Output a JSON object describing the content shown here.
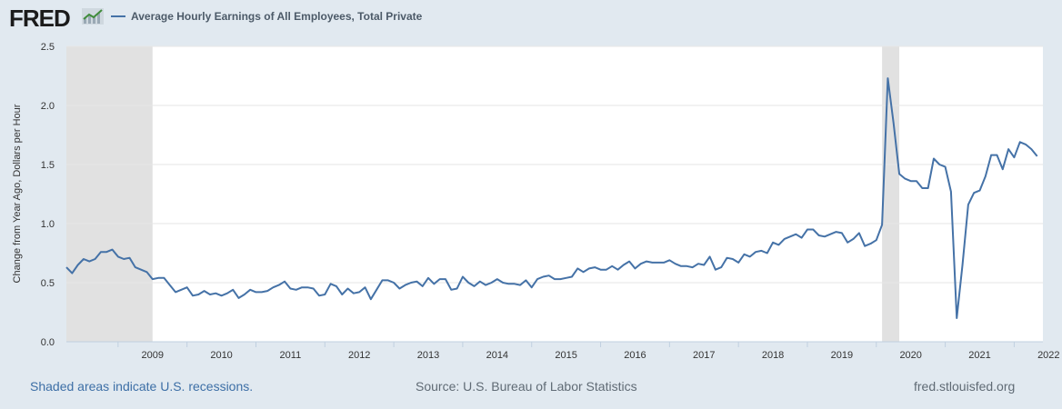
{
  "header": {
    "logo_text": "FRED",
    "logo_icon": "trend-line-icon"
  },
  "colors": {
    "series": "#4572a7",
    "recession": "#e1e1e1",
    "background": "#e1e9f0",
    "plot": "#ffffff"
  },
  "footer": {
    "recession_note": "Shaded areas indicate U.S. recessions.",
    "source": "Source: U.S. Bureau of Labor Statistics",
    "site": "fred.stlouisfed.org"
  },
  "chart_data": {
    "type": "line",
    "legend_position": "top-left",
    "grid": "horizontal",
    "ylabel": "Change from Year Ago, Dollars per Hour",
    "xlabel": "",
    "ylim": [
      0,
      2.5
    ],
    "y_ticks": [
      "0.0",
      "0.5",
      "1.0",
      "1.5",
      "2.0",
      "2.5"
    ],
    "x_ticks": [
      "2009",
      "2010",
      "2011",
      "2012",
      "2013",
      "2014",
      "2015",
      "2016",
      "2017",
      "2018",
      "2019",
      "2020",
      "2021",
      "2022"
    ],
    "recessions": [
      [
        "2008-04",
        "2009-06"
      ],
      [
        "2020-02",
        "2020-04"
      ]
    ],
    "series": [
      {
        "name": "Average Hourly Earnings of All Employees, Total Private",
        "start": "2008-04",
        "frequency": "monthly",
        "values": [
          0.63,
          0.58,
          0.65,
          0.7,
          0.68,
          0.7,
          0.76,
          0.76,
          0.78,
          0.72,
          0.7,
          0.71,
          0.63,
          0.61,
          0.59,
          0.53,
          0.54,
          0.54,
          0.48,
          0.42,
          0.44,
          0.46,
          0.39,
          0.4,
          0.43,
          0.4,
          0.41,
          0.39,
          0.41,
          0.44,
          0.37,
          0.4,
          0.44,
          0.42,
          0.42,
          0.43,
          0.46,
          0.48,
          0.51,
          0.45,
          0.44,
          0.46,
          0.46,
          0.45,
          0.39,
          0.4,
          0.49,
          0.47,
          0.4,
          0.45,
          0.41,
          0.42,
          0.46,
          0.36,
          0.44,
          0.52,
          0.52,
          0.5,
          0.45,
          0.48,
          0.5,
          0.51,
          0.47,
          0.54,
          0.49,
          0.53,
          0.53,
          0.44,
          0.45,
          0.55,
          0.5,
          0.47,
          0.51,
          0.48,
          0.5,
          0.53,
          0.5,
          0.49,
          0.49,
          0.48,
          0.52,
          0.46,
          0.53,
          0.55,
          0.56,
          0.53,
          0.53,
          0.54,
          0.55,
          0.62,
          0.59,
          0.62,
          0.63,
          0.61,
          0.61,
          0.64,
          0.61,
          0.65,
          0.68,
          0.62,
          0.66,
          0.68,
          0.67,
          0.67,
          0.67,
          0.69,
          0.66,
          0.64,
          0.64,
          0.63,
          0.66,
          0.65,
          0.72,
          0.61,
          0.63,
          0.71,
          0.7,
          0.67,
          0.74,
          0.72,
          0.76,
          0.77,
          0.75,
          0.84,
          0.82,
          0.87,
          0.89,
          0.91,
          0.88,
          0.95,
          0.95,
          0.9,
          0.89,
          0.91,
          0.93,
          0.92,
          0.84,
          0.87,
          0.92,
          0.81,
          0.83,
          0.86,
          0.99,
          2.23,
          1.85,
          1.42,
          1.38,
          1.36,
          1.36,
          1.3,
          1.3,
          1.55,
          1.5,
          1.48,
          1.27,
          0.2,
          0.65,
          1.16,
          1.26,
          1.28,
          1.4,
          1.58,
          1.58,
          1.46,
          1.63,
          1.56,
          1.69,
          1.67,
          1.63,
          1.57
        ]
      }
    ]
  }
}
